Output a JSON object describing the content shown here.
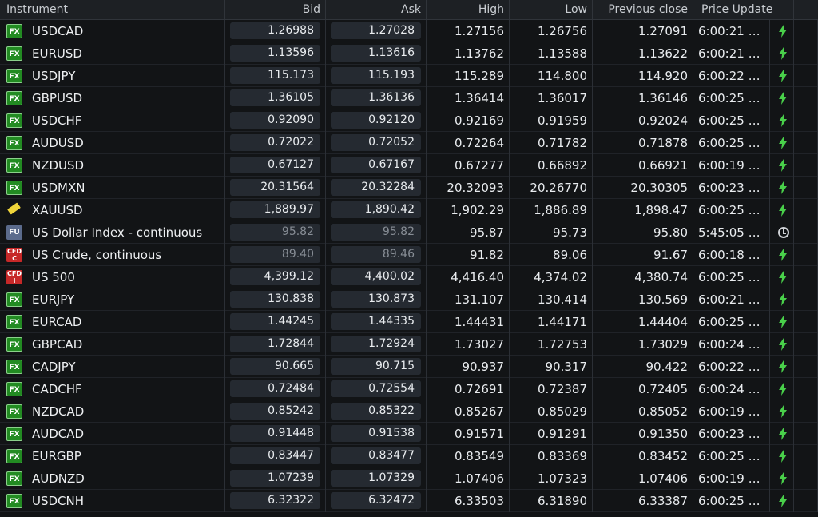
{
  "columns": [
    "Instrument",
    "Bid",
    "Ask",
    "High",
    "Low",
    "Previous close",
    "Price Update"
  ],
  "rows": [
    {
      "badge": "FX",
      "badge_type": "fx",
      "instrument": "USDCAD",
      "bid": "1.26988",
      "ask": "1.27028",
      "high": "1.27156",
      "low": "1.26756",
      "previous_close": "1.27091",
      "time": "6:00:21 …",
      "status_icon": "lightning-icon",
      "quote_state": "active"
    },
    {
      "badge": "FX",
      "badge_type": "fx",
      "instrument": "EURUSD",
      "bid": "1.13596",
      "ask": "1.13616",
      "high": "1.13762",
      "low": "1.13588",
      "previous_close": "1.13622",
      "time": "6:00:21 …",
      "status_icon": "lightning-icon",
      "quote_state": "active"
    },
    {
      "badge": "FX",
      "badge_type": "fx",
      "instrument": "USDJPY",
      "bid": "115.173",
      "ask": "115.193",
      "high": "115.289",
      "low": "114.800",
      "previous_close": "114.920",
      "time": "6:00:22 …",
      "status_icon": "lightning-icon",
      "quote_state": "active"
    },
    {
      "badge": "FX",
      "badge_type": "fx",
      "instrument": "GBPUSD",
      "bid": "1.36105",
      "ask": "1.36136",
      "high": "1.36414",
      "low": "1.36017",
      "previous_close": "1.36146",
      "time": "6:00:25 …",
      "status_icon": "lightning-icon",
      "quote_state": "active"
    },
    {
      "badge": "FX",
      "badge_type": "fx",
      "instrument": "USDCHF",
      "bid": "0.92090",
      "ask": "0.92120",
      "high": "0.92169",
      "low": "0.91959",
      "previous_close": "0.92024",
      "time": "6:00:25 …",
      "status_icon": "lightning-icon",
      "quote_state": "active"
    },
    {
      "badge": "FX",
      "badge_type": "fx",
      "instrument": "AUDUSD",
      "bid": "0.72022",
      "ask": "0.72052",
      "high": "0.72264",
      "low": "0.71782",
      "previous_close": "0.71878",
      "time": "6:00:25 …",
      "status_icon": "lightning-icon",
      "quote_state": "active"
    },
    {
      "badge": "FX",
      "badge_type": "fx",
      "instrument": "NZDUSD",
      "bid": "0.67127",
      "ask": "0.67167",
      "high": "0.67277",
      "low": "0.66892",
      "previous_close": "0.66921",
      "time": "6:00:19 …",
      "status_icon": "lightning-icon",
      "quote_state": "active"
    },
    {
      "badge": "FX",
      "badge_type": "fx",
      "instrument": "USDMXN",
      "bid": "20.31564",
      "ask": "20.32284",
      "high": "20.32093",
      "low": "20.26770",
      "previous_close": "20.30305",
      "time": "6:00:23 …",
      "status_icon": "lightning-icon",
      "quote_state": "active"
    },
    {
      "badge": "",
      "badge_type": "gold",
      "instrument": "XAUUSD",
      "bid": "1,889.97",
      "ask": "1,890.42",
      "high": "1,902.29",
      "low": "1,886.89",
      "previous_close": "1,898.47",
      "time": "6:00:25 …",
      "status_icon": "lightning-icon",
      "quote_state": "active"
    },
    {
      "badge": "FU",
      "badge_type": "fu",
      "instrument": "US Dollar Index - continuous",
      "bid": "95.82",
      "ask": "95.82",
      "high": "95.87",
      "low": "95.73",
      "previous_close": "95.80",
      "time": "5:45:05 …",
      "status_icon": "clock-icon",
      "quote_state": "delayed"
    },
    {
      "badge": "CFD\nC",
      "badge_type": "cfd",
      "instrument": "US Crude, continuous",
      "bid": "89.40",
      "ask": "89.46",
      "high": "91.82",
      "low": "89.06",
      "previous_close": "91.67",
      "time": "6:00:18 …",
      "status_icon": "lightning-icon",
      "quote_state": "delayed"
    },
    {
      "badge": "CFD\nI",
      "badge_type": "cfd",
      "instrument": "US 500",
      "bid": "4,399.12",
      "ask": "4,400.02",
      "high": "4,416.40",
      "low": "4,374.02",
      "previous_close": "4,380.74",
      "time": "6:00:25 …",
      "status_icon": "lightning-icon",
      "quote_state": "active"
    },
    {
      "badge": "FX",
      "badge_type": "fx",
      "instrument": "EURJPY",
      "bid": "130.838",
      "ask": "130.873",
      "high": "131.107",
      "low": "130.414",
      "previous_close": "130.569",
      "time": "6:00:21 …",
      "status_icon": "lightning-icon",
      "quote_state": "active"
    },
    {
      "badge": "FX",
      "badge_type": "fx",
      "instrument": "EURCAD",
      "bid": "1.44245",
      "ask": "1.44335",
      "high": "1.44431",
      "low": "1.44171",
      "previous_close": "1.44404",
      "time": "6:00:25 …",
      "status_icon": "lightning-icon",
      "quote_state": "active"
    },
    {
      "badge": "FX",
      "badge_type": "fx",
      "instrument": "GBPCAD",
      "bid": "1.72844",
      "ask": "1.72924",
      "high": "1.73027",
      "low": "1.72753",
      "previous_close": "1.73029",
      "time": "6:00:24 …",
      "status_icon": "lightning-icon",
      "quote_state": "active"
    },
    {
      "badge": "FX",
      "badge_type": "fx",
      "instrument": "CADJPY",
      "bid": "90.665",
      "ask": "90.715",
      "high": "90.937",
      "low": "90.317",
      "previous_close": "90.422",
      "time": "6:00:22 …",
      "status_icon": "lightning-icon",
      "quote_state": "active"
    },
    {
      "badge": "FX",
      "badge_type": "fx",
      "instrument": "CADCHF",
      "bid": "0.72484",
      "ask": "0.72554",
      "high": "0.72691",
      "low": "0.72387",
      "previous_close": "0.72405",
      "time": "6:00:24 …",
      "status_icon": "lightning-icon",
      "quote_state": "active"
    },
    {
      "badge": "FX",
      "badge_type": "fx",
      "instrument": "NZDCAD",
      "bid": "0.85242",
      "ask": "0.85322",
      "high": "0.85267",
      "low": "0.85029",
      "previous_close": "0.85052",
      "time": "6:00:19 …",
      "status_icon": "lightning-icon",
      "quote_state": "active"
    },
    {
      "badge": "FX",
      "badge_type": "fx",
      "instrument": "AUDCAD",
      "bid": "0.91448",
      "ask": "0.91538",
      "high": "0.91571",
      "low": "0.91291",
      "previous_close": "0.91350",
      "time": "6:00:23 …",
      "status_icon": "lightning-icon",
      "quote_state": "active"
    },
    {
      "badge": "FX",
      "badge_type": "fx",
      "instrument": "EURGBP",
      "bid": "0.83447",
      "ask": "0.83477",
      "high": "0.83549",
      "low": "0.83369",
      "previous_close": "0.83452",
      "time": "6:00:25 …",
      "status_icon": "lightning-icon",
      "quote_state": "active"
    },
    {
      "badge": "FX",
      "badge_type": "fx",
      "instrument": "AUDNZD",
      "bid": "1.07239",
      "ask": "1.07329",
      "high": "1.07406",
      "low": "1.07323",
      "previous_close": "1.07406",
      "time": "6:00:19 …",
      "status_icon": "lightning-icon",
      "quote_state": "active"
    },
    {
      "badge": "FX",
      "badge_type": "fx",
      "instrument": "USDCNH",
      "bid": "6.32322",
      "ask": "6.32472",
      "high": "6.33503",
      "low": "6.31890",
      "previous_close": "6.33387",
      "time": "6:00:25 …",
      "status_icon": "lightning-icon",
      "quote_state": "active"
    }
  ],
  "colors": {
    "background": "#121416",
    "header": "#1d2024",
    "price_pill": "#252a31",
    "muted_text": "#878d95",
    "active_icon": "#49d04a",
    "clock_icon": "#d0d3d7"
  }
}
